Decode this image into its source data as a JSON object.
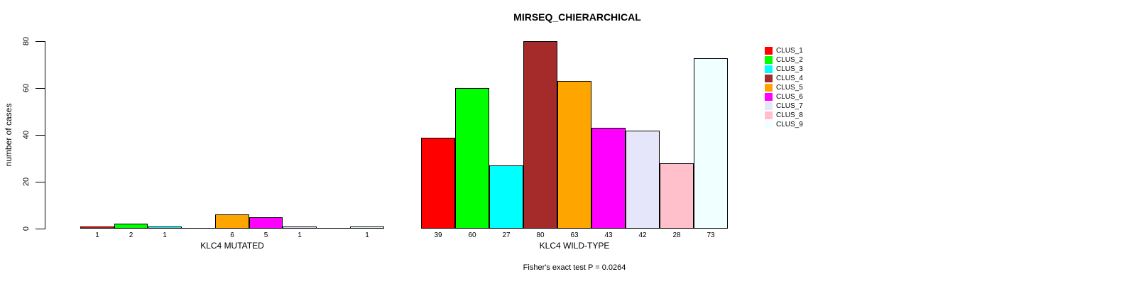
{
  "chart_data": {
    "type": "bar",
    "title": "MIRSEQ_CHIERARCHICAL",
    "ylabel": "number of cases",
    "xlabel": "",
    "ylim": [
      0,
      80
    ],
    "yticks": [
      0,
      20,
      40,
      60,
      80
    ],
    "grid": false,
    "legend_position": "right",
    "series_names": [
      "CLUS_1",
      "CLUS_2",
      "CLUS_3",
      "CLUS_4",
      "CLUS_5",
      "CLUS_6",
      "CLUS_7",
      "CLUS_8",
      "CLUS_9"
    ],
    "colors": [
      "#FF0000",
      "#00FF00",
      "#00FFFF",
      "#A52A2A",
      "#FFA500",
      "#FF00FF",
      "#E6E6FA",
      "#FFC0CB",
      "#F0FFFF"
    ],
    "bar_border_color": "#000000",
    "groups": [
      {
        "label": "KLC4 MUTATED",
        "values": [
          1,
          2,
          1,
          0,
          6,
          5,
          1,
          0,
          1
        ]
      },
      {
        "label": "KLC4 WILD-TYPE",
        "values": [
          39,
          60,
          27,
          80,
          63,
          43,
          42,
          28,
          73
        ]
      }
    ],
    "annotation": "Fisher's exact test P = 0.0264"
  }
}
